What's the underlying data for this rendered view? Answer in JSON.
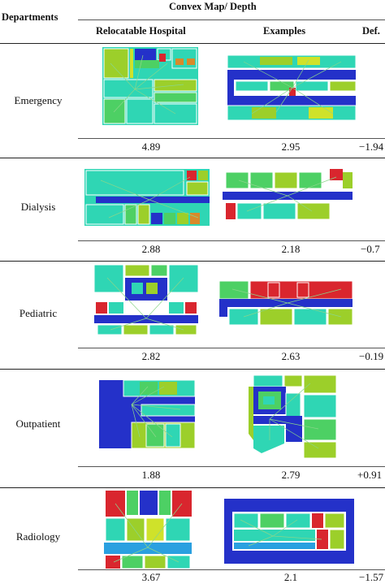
{
  "table": {
    "header": {
      "departments": "Departments",
      "group": "Convex Map/ Depth",
      "col_relocatable": "Relocatable Hospital",
      "col_examples": "Examples",
      "col_def": "Def."
    },
    "rows": [
      {
        "department": "Emergency",
        "relocatable": "4.89",
        "examples": "2.95",
        "def": "−1.94"
      },
      {
        "department": "Dialysis",
        "relocatable": "2.88",
        "examples": "2.18",
        "def": "−0.7"
      },
      {
        "department": "Pediatric",
        "relocatable": "2.82",
        "examples": "2.63",
        "def": "−0.19"
      },
      {
        "department": "Outpatient",
        "relocatable": "1.88",
        "examples": "2.79",
        "def": "+0.91"
      },
      {
        "department": "Radiology",
        "relocatable": "3.67",
        "examples": "2.1",
        "def": "−1.57"
      }
    ]
  },
  "colors": {
    "teal": "#2fd6b4",
    "lime": "#9ccf2a",
    "green": "#4dd064",
    "blue": "#2431c9",
    "red": "#d9262e",
    "orange": "#d88a2a",
    "yellow": "#cfe22a",
    "sky": "#2aa0e0",
    "line": "#8ad68a"
  }
}
